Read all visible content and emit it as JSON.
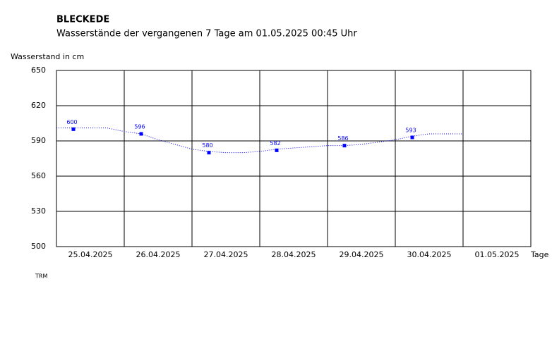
{
  "chart_data": {
    "type": "line",
    "title": "BLECKEDE",
    "subtitle": "Wasserstände der vergangenen 7 Tage am 01.05.2025 00:45 Uhr",
    "ylabel": "Wasserstand in cm",
    "xlabel": "Tage",
    "categories": [
      "25.04.2025",
      "26.04.2025",
      "27.04.2025",
      "28.04.2025",
      "29.04.2025",
      "30.04.2025",
      "01.05.2025"
    ],
    "ylim": [
      500,
      650
    ],
    "yticks": [
      500,
      530,
      560,
      590,
      620,
      650
    ],
    "grid": true,
    "series": [
      {
        "color": "#0000ff",
        "values": [
          600,
          596,
          580,
          582,
          586,
          593,
          null
        ]
      }
    ],
    "course": {
      "color": "#0000ff",
      "values": [
        601,
        601,
        601,
        601,
        598,
        596,
        591,
        587,
        583,
        581,
        580,
        580,
        581,
        583,
        584,
        585,
        586,
        586,
        587,
        589,
        591,
        594,
        596,
        596,
        596
      ]
    }
  },
  "footer": "TRM"
}
